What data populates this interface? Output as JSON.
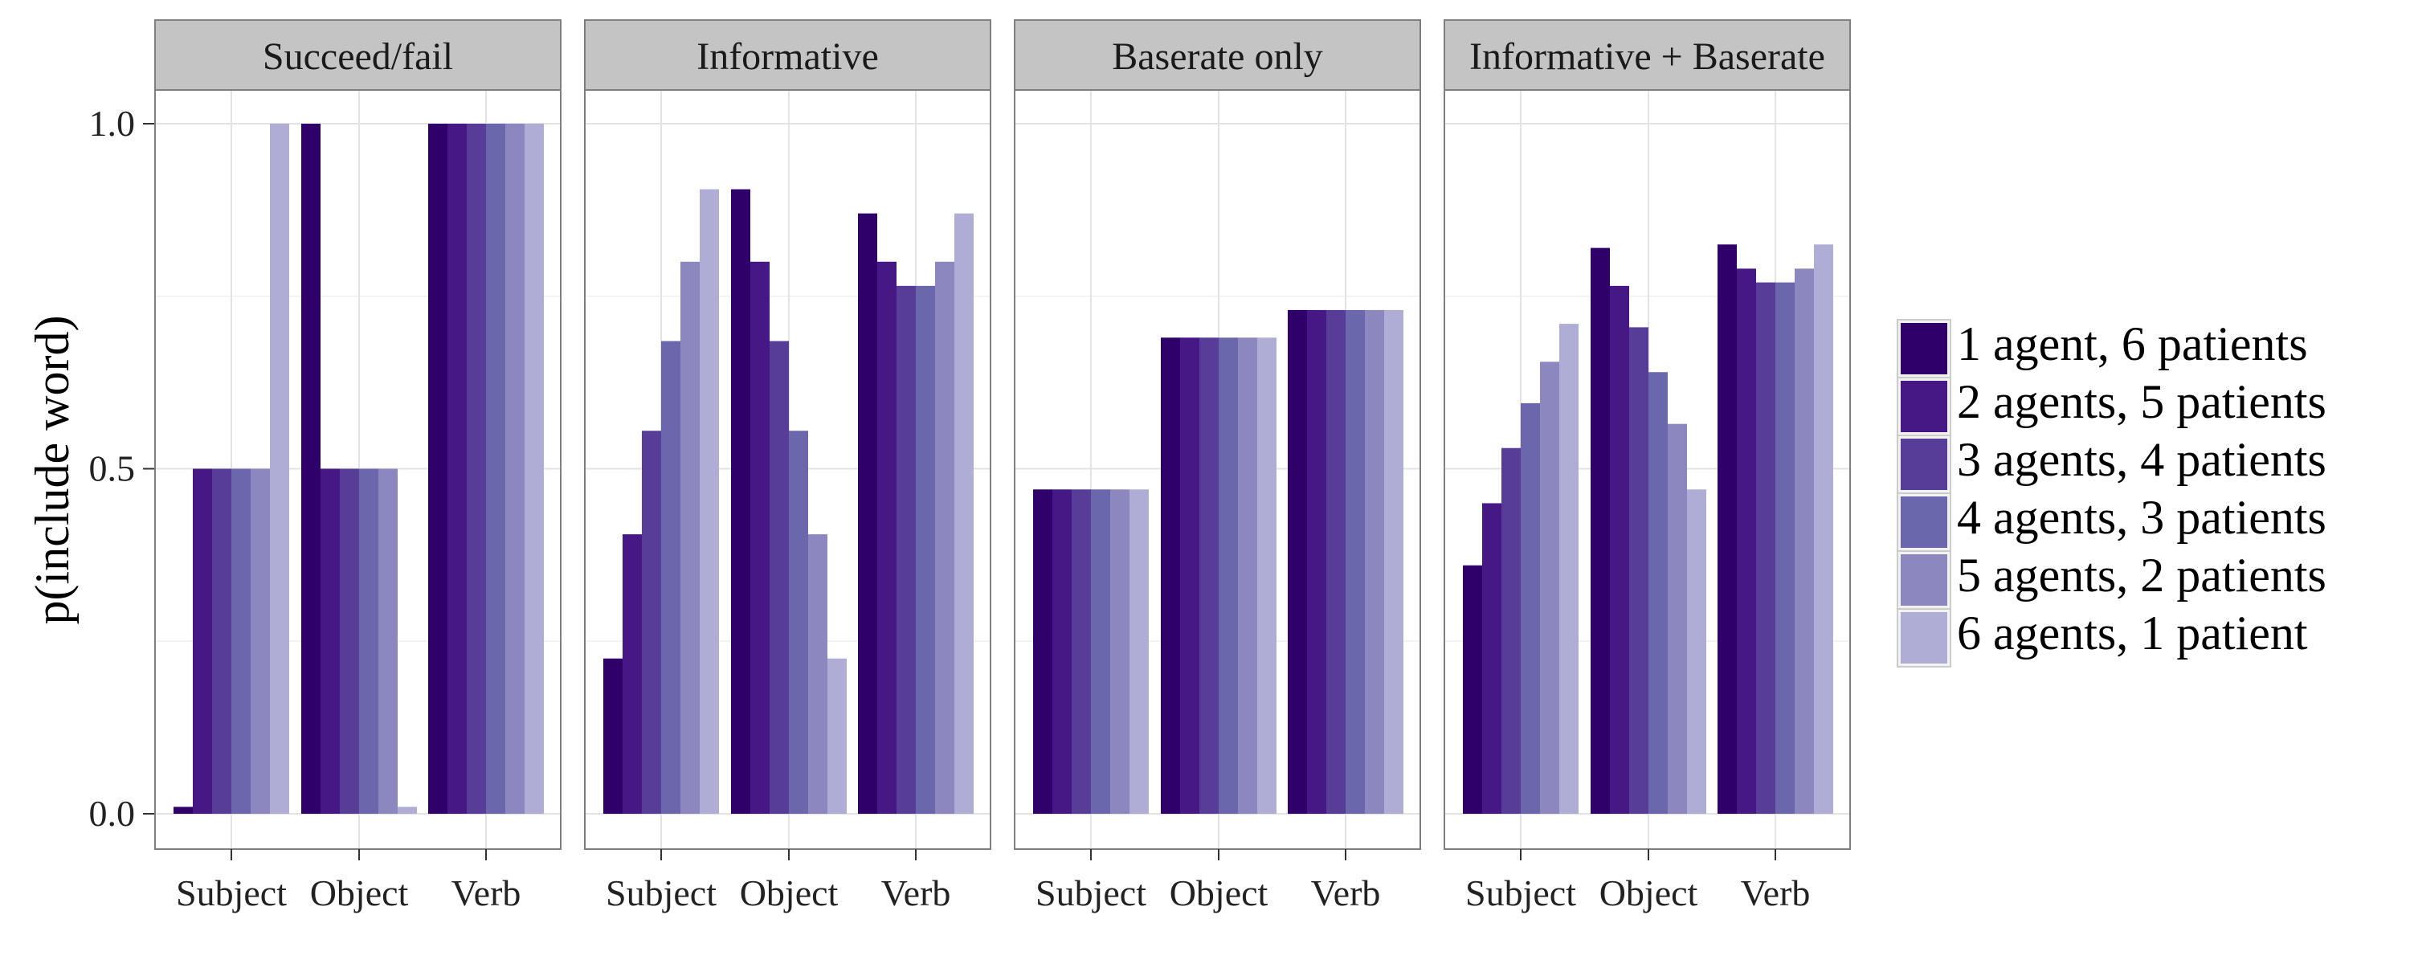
{
  "chart_data": {
    "type": "bar",
    "ylabel": "p(include word)",
    "ylim": [
      0,
      1.05
    ],
    "yticks": [
      "0.0",
      "0.5",
      "1.0"
    ],
    "categories": [
      "Subject",
      "Object",
      "Verb"
    ],
    "grid": true,
    "legend_position": "right",
    "legend": [
      {
        "label": "1 agent, 6 patients",
        "color": "#30006a"
      },
      {
        "label": "2 agents, 5 patients",
        "color": "#451885"
      },
      {
        "label": "3 agents, 4 patients",
        "color": "#573c98"
      },
      {
        "label": "4 agents, 3 patients",
        "color": "#6b67ac"
      },
      {
        "label": "5 agents, 2 patients",
        "color": "#8d87bf"
      },
      {
        "label": "6 agents, 1 patient",
        "color": "#afadd6"
      }
    ],
    "panels": [
      {
        "title": "Succeed/fail",
        "values": [
          [
            0.01,
            0.5,
            0.5,
            0.5,
            0.5,
            1.0
          ],
          [
            1.0,
            0.5,
            0.5,
            0.5,
            0.5,
            0.01
          ],
          [
            1.0,
            1.0,
            1.0,
            1.0,
            1.0,
            1.0
          ]
        ]
      },
      {
        "title": "Informative",
        "values": [
          [
            0.225,
            0.405,
            0.555,
            0.685,
            0.8,
            0.905
          ],
          [
            0.905,
            0.8,
            0.685,
            0.555,
            0.405,
            0.225
          ],
          [
            0.87,
            0.8,
            0.765,
            0.765,
            0.8,
            0.87
          ]
        ]
      },
      {
        "title": "Baserate only",
        "values": [
          [
            0.47,
            0.47,
            0.47,
            0.47,
            0.47,
            0.47
          ],
          [
            0.69,
            0.69,
            0.69,
            0.69,
            0.69,
            0.69
          ],
          [
            0.73,
            0.73,
            0.73,
            0.73,
            0.73,
            0.73
          ]
        ]
      },
      {
        "title": "Informative + Baserate",
        "values": [
          [
            0.36,
            0.45,
            0.53,
            0.595,
            0.655,
            0.71
          ],
          [
            0.82,
            0.765,
            0.705,
            0.64,
            0.565,
            0.47
          ],
          [
            0.825,
            0.79,
            0.77,
            0.77,
            0.79,
            0.825
          ]
        ]
      }
    ]
  }
}
